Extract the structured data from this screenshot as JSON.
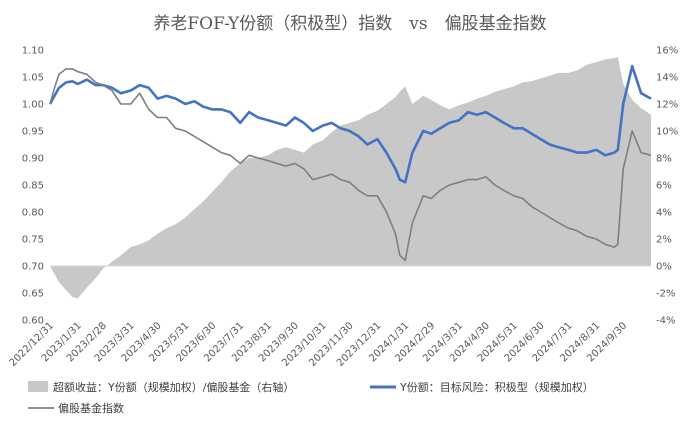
{
  "chart_data": {
    "type": "line",
    "title": "养老FOF-Y份额（积极型）指数　vs　偏股基金指数",
    "xlabel": "",
    "ylabel": "",
    "y_left": {
      "min": 0.6,
      "max": 1.1,
      "ticks": [
        "0.60",
        "0.65",
        "0.70",
        "0.75",
        "0.80",
        "0.85",
        "0.90",
        "0.95",
        "1.00",
        "1.05",
        "1.10"
      ]
    },
    "y_right": {
      "min": -4,
      "max": 16,
      "ticks": [
        "-4%",
        "-2%",
        "0%",
        "2%",
        "4%",
        "6%",
        "8%",
        "10%",
        "12%",
        "14%",
        "16%"
      ]
    },
    "x_range": [
      "2022-12-31",
      "2024-10-31"
    ],
    "x_ticks": [
      "2022/12/31",
      "2023/1/31",
      "2023/2/28",
      "2023/3/31",
      "2023/4/30",
      "2023/5/31",
      "2023/6/30",
      "2023/7/31",
      "2023/8/31",
      "2023/9/30",
      "2023/10/31",
      "2023/11/30",
      "2023/12/31",
      "2024/1/31",
      "2024/2/29",
      "2024/3/31",
      "2024/4/30",
      "2024/5/31",
      "2024/6/30",
      "2024/7/31",
      "2024/8/31",
      "2024/9/30"
    ],
    "grid": false,
    "legend_position": "bottom",
    "series": [
      {
        "name": "超额收益：Y份额（规模加权）/偏股基金（右轴）",
        "kind": "area",
        "axis": "right",
        "color": "#c8c8c8",
        "x": [
          "2022-12-31",
          "2023-01-05",
          "2023-01-10",
          "2023-01-18",
          "2023-01-25",
          "2023-01-31",
          "2023-02-10",
          "2023-02-20",
          "2023-02-28",
          "2023-03-10",
          "2023-03-20",
          "2023-03-31",
          "2023-04-10",
          "2023-04-20",
          "2023-04-30",
          "2023-05-10",
          "2023-05-20",
          "2023-05-31",
          "2023-06-10",
          "2023-06-20",
          "2023-06-30",
          "2023-07-10",
          "2023-07-20",
          "2023-07-31",
          "2023-08-10",
          "2023-08-20",
          "2023-08-31",
          "2023-09-10",
          "2023-09-20",
          "2023-09-30",
          "2023-10-10",
          "2023-10-20",
          "2023-10-31",
          "2023-11-10",
          "2023-11-20",
          "2023-11-30",
          "2023-12-10",
          "2023-12-20",
          "2023-12-31",
          "2024-01-10",
          "2024-01-20",
          "2024-01-25",
          "2024-01-31",
          "2024-02-08",
          "2024-02-20",
          "2024-02-29",
          "2024-03-10",
          "2024-03-20",
          "2024-03-31",
          "2024-04-10",
          "2024-04-20",
          "2024-04-30",
          "2024-05-10",
          "2024-05-20",
          "2024-05-31",
          "2024-06-10",
          "2024-06-20",
          "2024-06-30",
          "2024-07-10",
          "2024-07-20",
          "2024-07-31",
          "2024-08-10",
          "2024-08-20",
          "2024-08-31",
          "2024-09-10",
          "2024-09-20",
          "2024-09-24",
          "2024-09-30",
          "2024-10-10",
          "2024-10-20",
          "2024-10-31"
        ],
        "values": [
          0.0,
          -0.6,
          -1.2,
          -1.8,
          -2.3,
          -2.4,
          -1.6,
          -0.9,
          -0.2,
          0.3,
          0.8,
          1.4,
          1.6,
          1.9,
          2.4,
          2.8,
          3.1,
          3.6,
          4.2,
          4.8,
          5.5,
          6.2,
          7.0,
          7.6,
          8.0,
          8.0,
          8.2,
          8.6,
          8.8,
          8.6,
          8.4,
          9.0,
          9.3,
          9.9,
          10.4,
          10.6,
          10.8,
          11.2,
          11.5,
          12.0,
          12.5,
          12.9,
          13.3,
          12.0,
          12.6,
          12.3,
          11.9,
          11.6,
          11.9,
          12.1,
          12.4,
          12.6,
          12.9,
          13.1,
          13.3,
          13.6,
          13.7,
          13.9,
          14.1,
          14.3,
          14.3,
          14.5,
          14.9,
          15.1,
          15.3,
          15.4,
          15.5,
          13.5,
          12.3,
          11.7,
          11.2
        ]
      },
      {
        "name": "Y份额：目标风险：积极型（规模加权）",
        "kind": "line",
        "axis": "left",
        "color": "#4472c4",
        "x": [
          "2022-12-31",
          "2023-01-05",
          "2023-01-10",
          "2023-01-18",
          "2023-01-25",
          "2023-01-31",
          "2023-02-10",
          "2023-02-20",
          "2023-02-28",
          "2023-03-10",
          "2023-03-20",
          "2023-03-31",
          "2023-04-10",
          "2023-04-20",
          "2023-04-30",
          "2023-05-10",
          "2023-05-20",
          "2023-05-31",
          "2023-06-10",
          "2023-06-20",
          "2023-06-30",
          "2023-07-10",
          "2023-07-20",
          "2023-07-31",
          "2023-08-10",
          "2023-08-20",
          "2023-08-31",
          "2023-09-10",
          "2023-09-20",
          "2023-09-30",
          "2023-10-10",
          "2023-10-20",
          "2023-10-31",
          "2023-11-10",
          "2023-11-20",
          "2023-11-30",
          "2023-12-10",
          "2023-12-20",
          "2023-12-31",
          "2024-01-10",
          "2024-01-20",
          "2024-01-25",
          "2024-01-31",
          "2024-02-08",
          "2024-02-20",
          "2024-02-29",
          "2024-03-10",
          "2024-03-20",
          "2024-03-31",
          "2024-04-10",
          "2024-04-20",
          "2024-04-30",
          "2024-05-10",
          "2024-05-20",
          "2024-05-31",
          "2024-06-10",
          "2024-06-20",
          "2024-06-30",
          "2024-07-10",
          "2024-07-20",
          "2024-07-31",
          "2024-08-10",
          "2024-08-20",
          "2024-08-31",
          "2024-09-10",
          "2024-09-20",
          "2024-09-24",
          "2024-09-30",
          "2024-10-10",
          "2024-10-20",
          "2024-10-31"
        ],
        "values": [
          1.0,
          1.015,
          1.03,
          1.04,
          1.042,
          1.037,
          1.045,
          1.035,
          1.035,
          1.03,
          1.02,
          1.025,
          1.035,
          1.03,
          1.01,
          1.015,
          1.01,
          1.0,
          1.005,
          0.995,
          0.99,
          0.99,
          0.985,
          0.965,
          0.985,
          0.975,
          0.97,
          0.965,
          0.96,
          0.975,
          0.965,
          0.95,
          0.96,
          0.965,
          0.955,
          0.95,
          0.94,
          0.925,
          0.935,
          0.91,
          0.88,
          0.86,
          0.855,
          0.91,
          0.95,
          0.945,
          0.955,
          0.965,
          0.97,
          0.985,
          0.98,
          0.985,
          0.975,
          0.965,
          0.955,
          0.955,
          0.945,
          0.935,
          0.925,
          0.92,
          0.915,
          0.91,
          0.91,
          0.915,
          0.905,
          0.91,
          0.915,
          1.0,
          1.07,
          1.02,
          1.01
        ]
      },
      {
        "name": "偏股基金指数",
        "kind": "line",
        "axis": "left",
        "color": "#7f7f7f",
        "x": [
          "2022-12-31",
          "2023-01-05",
          "2023-01-10",
          "2023-01-18",
          "2023-01-25",
          "2023-01-31",
          "2023-02-10",
          "2023-02-20",
          "2023-02-28",
          "2023-03-10",
          "2023-03-20",
          "2023-03-31",
          "2023-04-10",
          "2023-04-20",
          "2023-04-30",
          "2023-05-10",
          "2023-05-20",
          "2023-05-31",
          "2023-06-10",
          "2023-06-20",
          "2023-06-30",
          "2023-07-10",
          "2023-07-20",
          "2023-07-31",
          "2023-08-10",
          "2023-08-20",
          "2023-08-31",
          "2023-09-10",
          "2023-09-20",
          "2023-09-30",
          "2023-10-10",
          "2023-10-20",
          "2023-10-31",
          "2023-11-10",
          "2023-11-20",
          "2023-11-30",
          "2023-12-10",
          "2023-12-20",
          "2023-12-31",
          "2024-01-10",
          "2024-01-20",
          "2024-01-25",
          "2024-01-31",
          "2024-02-08",
          "2024-02-20",
          "2024-02-29",
          "2024-03-10",
          "2024-03-20",
          "2024-03-31",
          "2024-04-10",
          "2024-04-20",
          "2024-04-30",
          "2024-05-10",
          "2024-05-20",
          "2024-05-31",
          "2024-06-10",
          "2024-06-20",
          "2024-06-30",
          "2024-07-10",
          "2024-07-20",
          "2024-07-31",
          "2024-08-10",
          "2024-08-20",
          "2024-08-31",
          "2024-09-10",
          "2024-09-20",
          "2024-09-24",
          "2024-09-30",
          "2024-10-10",
          "2024-10-20",
          "2024-10-31"
        ],
        "values": [
          1.0,
          1.03,
          1.055,
          1.065,
          1.065,
          1.06,
          1.055,
          1.04,
          1.035,
          1.025,
          1.0,
          1.0,
          1.02,
          0.99,
          0.975,
          0.975,
          0.955,
          0.95,
          0.94,
          0.93,
          0.92,
          0.91,
          0.905,
          0.89,
          0.905,
          0.9,
          0.895,
          0.89,
          0.885,
          0.89,
          0.88,
          0.86,
          0.865,
          0.87,
          0.86,
          0.855,
          0.84,
          0.83,
          0.83,
          0.8,
          0.76,
          0.72,
          0.71,
          0.78,
          0.83,
          0.825,
          0.84,
          0.85,
          0.855,
          0.86,
          0.86,
          0.865,
          0.85,
          0.84,
          0.83,
          0.825,
          0.81,
          0.8,
          0.79,
          0.78,
          0.77,
          0.765,
          0.755,
          0.75,
          0.74,
          0.735,
          0.74,
          0.88,
          0.95,
          0.91,
          0.905
        ]
      }
    ],
    "legend": [
      {
        "label": "超额收益：Y份额（规模加权）/偏股基金（右轴）",
        "swatch": "area",
        "color": "#c8c8c8"
      },
      {
        "label": "Y份额：目标风险：积极型（规模加权）",
        "swatch": "line",
        "color": "#4472c4"
      },
      {
        "label": "偏股基金指数",
        "swatch": "line",
        "color": "#7f7f7f"
      }
    ]
  }
}
